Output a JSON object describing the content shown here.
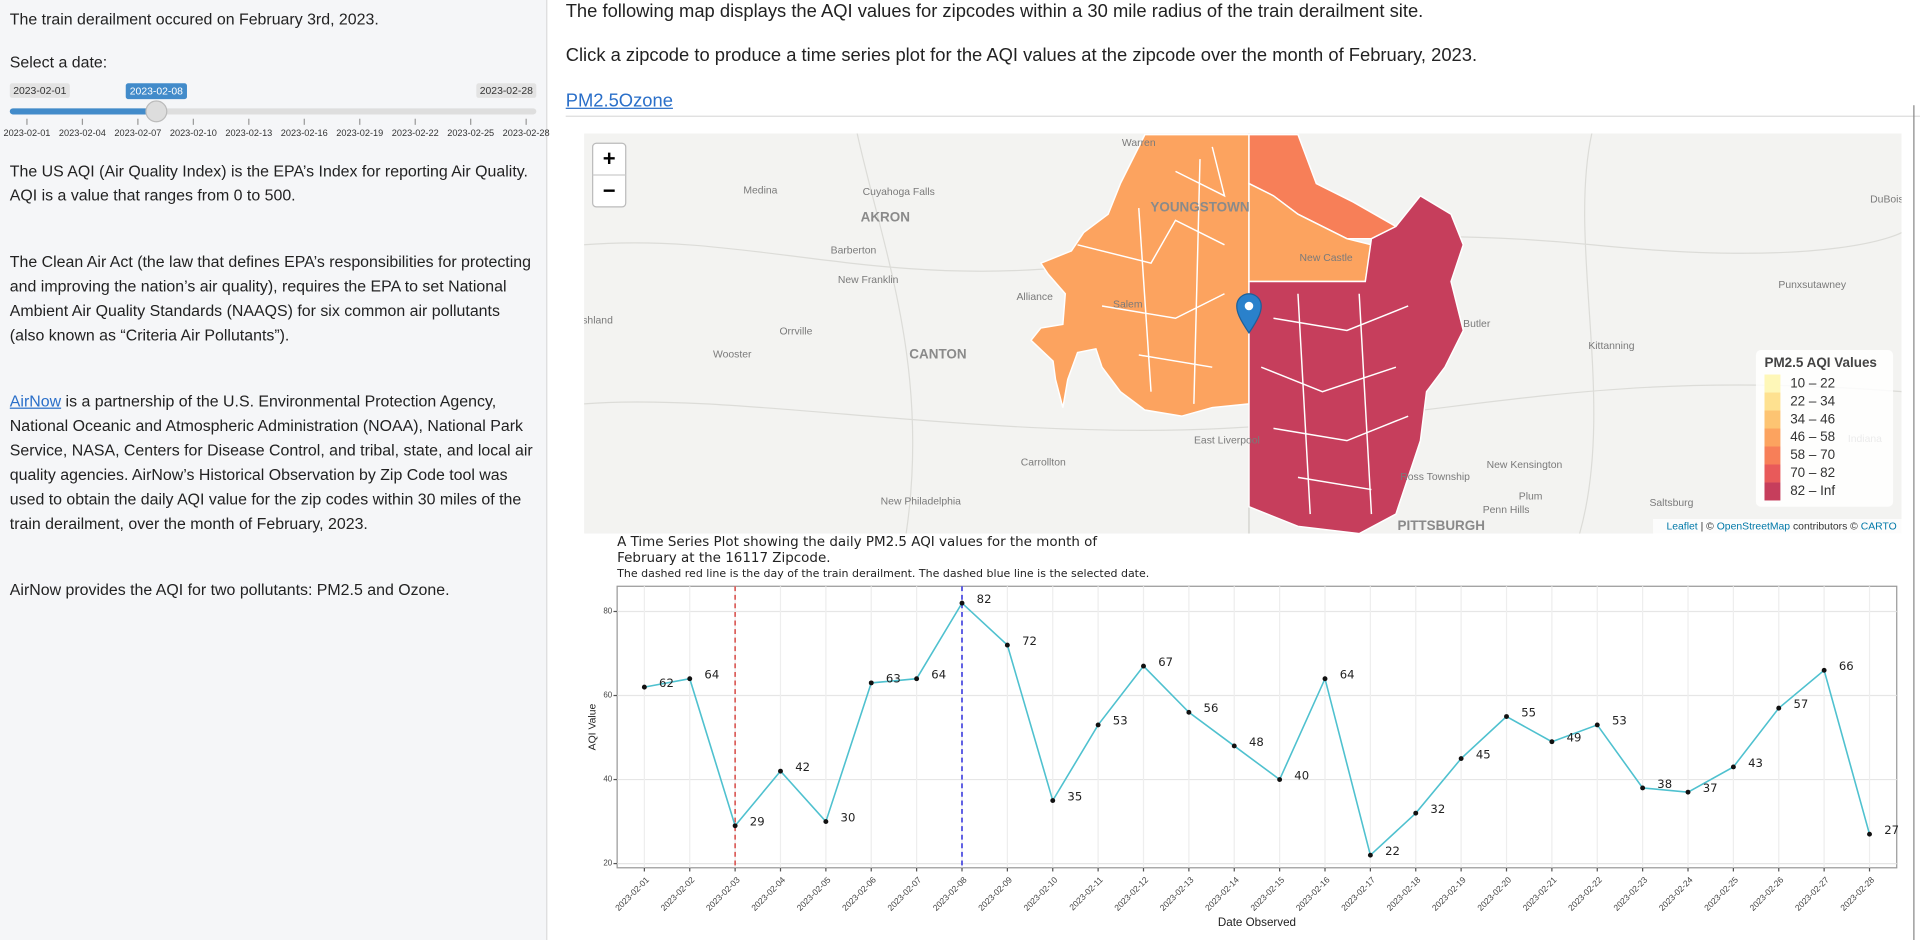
{
  "sidebar": {
    "intro": "The train derailment occured on February 3rd, 2023.",
    "slider": {
      "label": "Select a date:",
      "min": "2023-02-01",
      "max": "2023-02-28",
      "value": "2023-02-08",
      "ticks": [
        "2023-02-01",
        "2023-02-04",
        "2023-02-07",
        "2023-02-10",
        "2023-02-13",
        "2023-02-16",
        "2023-02-19",
        "2023-02-22",
        "2023-02-25",
        "2023-02-28"
      ]
    },
    "paragraphs": [
      "The US AQI (Air Quality Index) is the EPA’s Index for reporting Air Quality. AQI is a value that ranges from 0 to 500.",
      "The Clean Air Act (the law that defines EPA’s responsibilities for protecting and improving the nation’s air quality), requires the EPA to set National Ambient Air Quality Standards (NAAQS) for six common air pollutants (also known as “Criteria Air Pollutants”).",
      {
        "link": "AirNow",
        "text": " is a partnership of the U.S. Environmental Protection Agency, National Oceanic and Atmospheric Administration (NOAA), National Park Service, NASA, Centers for Disease Control, and tribal, state, and local air quality agencies. AirNow’s Historical Observation by Zip Code tool was used to obtain the daily AQI value for the zip codes within 30 miles of the train derailment, over the month of February, 2023."
      },
      "AirNow provides the AQI for two pollutants: PM2.5 and Ozone."
    ]
  },
  "main": {
    "lines": [
      "The following map displays the AQI values for zipcodes within a 30 mile radius of the train derailment site.",
      "Click a zipcode to produce a time series plot for the AQI values at the zipcode over the month of February, 2023."
    ],
    "tabs": [
      "PM2.5",
      "Ozone"
    ]
  },
  "map": {
    "zoom": [
      "+",
      "−"
    ],
    "places": [
      "Warren",
      "Medina",
      "Cuyahoga Falls",
      "AKRON",
      "Barberton",
      "New Franklin",
      "Alliance",
      "Salem",
      "Orrville",
      "Wooster",
      "CANTON",
      "Carrollton",
      "New Philadelphia",
      "East Liverpool",
      "Butler",
      "Kittanning",
      "Punxsutawney",
      "DuBois",
      "Indiana",
      "New Kensington",
      "Plum",
      "Penn Hills",
      "Ross Township",
      "PITTSBURGH",
      "Saltsburg",
      "YOUNGSTOWN",
      "New Castle",
      "shland"
    ],
    "legend": {
      "title": "PM2.5 AQI Values",
      "items": [
        {
          "label": "10 – 22",
          "color": "#fef7b8"
        },
        {
          "label": "22 – 34",
          "color": "#fee190"
        },
        {
          "label": "34 – 46",
          "color": "#fdc472"
        },
        {
          "label": "46 – 58",
          "color": "#fca35f"
        },
        {
          "label": "58 – 70",
          "color": "#f77f58"
        },
        {
          "label": "70 – 82",
          "color": "#e85a5a"
        },
        {
          "label": "82 – Inf",
          "color": "#c63e5c"
        }
      ]
    },
    "attribution": [
      "Leaflet",
      " | © ",
      "OpenStreetMap",
      " contributors © ",
      "CARTO"
    ]
  },
  "chart_data": {
    "type": "line",
    "title": [
      "A Time Series Plot showing the daily PM2.5 AQI values for the month of",
      "February at the 16117 Zipcode."
    ],
    "subtitle": "The dashed red line is the day of the train derailment. The dashed blue line is the selected date.",
    "x_label": "Date Observed",
    "y_label": "AQI Value",
    "categories": [
      "2023-02-01",
      "2023-02-02",
      "2023-02-03",
      "2023-02-04",
      "2023-02-05",
      "2023-02-06",
      "2023-02-07",
      "2023-02-08",
      "2023-02-09",
      "2023-02-10",
      "2023-02-11",
      "2023-02-12",
      "2023-02-13",
      "2023-02-14",
      "2023-02-15",
      "2023-02-16",
      "2023-02-17",
      "2023-02-18",
      "2023-02-19",
      "2023-02-20",
      "2023-02-21",
      "2023-02-22",
      "2023-02-23",
      "2023-02-24",
      "2023-02-25",
      "2023-02-26",
      "2023-02-27",
      "2023-02-28"
    ],
    "values": [
      62,
      64,
      29,
      42,
      30,
      63,
      64,
      82,
      72,
      35,
      53,
      67,
      56,
      48,
      40,
      64,
      22,
      32,
      45,
      55,
      49,
      53,
      38,
      37,
      43,
      57,
      66,
      27
    ],
    "color": "#4fc1cf",
    "ylim": [
      19,
      86
    ],
    "yticks": [
      20,
      40,
      60,
      80
    ],
    "grid": true,
    "vlines": [
      {
        "x": "2023-02-03",
        "color": "#d9534f"
      },
      {
        "x": "2023-02-08",
        "color": "#3a3adf"
      }
    ]
  }
}
